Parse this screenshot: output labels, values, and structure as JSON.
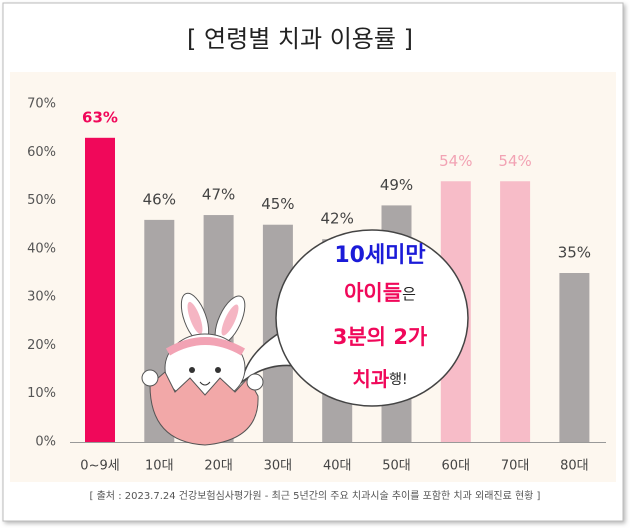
{
  "chart_data": {
    "type": "bar",
    "title": "[ 연령별 치과 이용률 ]",
    "categories": [
      "0~9세",
      "10대",
      "20대",
      "30대",
      "40대",
      "50대",
      "60대",
      "70대",
      "80대"
    ],
    "values": [
      63,
      46,
      47,
      45,
      42,
      49,
      54,
      54,
      35
    ],
    "value_labels": [
      "63%",
      "46%",
      "47%",
      "45%",
      "42%",
      "49%",
      "54%",
      "54%",
      "35%"
    ],
    "colors": [
      "#f0085a",
      "#aaa6a6",
      "#aaa6a6",
      "#aaa6a6",
      "#aaa6a6",
      "#aaa6a6",
      "#f7bcc8",
      "#f7bcc8",
      "#aaa6a6"
    ],
    "value_label_colors": [
      "#f0085a",
      "#444444",
      "#444444",
      "#444444",
      "#444444",
      "#444444",
      "#f2a3b4",
      "#f2a3b4",
      "#444444"
    ],
    "ylim": [
      0,
      70
    ],
    "yticks": [
      {
        "value": 0,
        "label": "0%"
      },
      {
        "value": 10,
        "label": "10%"
      },
      {
        "value": 20,
        "label": "20%"
      },
      {
        "value": 30,
        "label": "30%"
      },
      {
        "value": 40,
        "label": "40%"
      },
      {
        "value": 50,
        "label": "50%"
      },
      {
        "value": 60,
        "label": "60%"
      },
      {
        "value": 70,
        "label": "70%"
      }
    ],
    "grid": false,
    "annotation": [
      [
        {
          "text": "10세미만",
          "color": "#1b1bd8"
        }
      ],
      [
        {
          "text": "아이들",
          "color": "#f0085a"
        },
        {
          "text": "은",
          "color": "#222222"
        }
      ],
      [
        {
          "text": "3분의 2가",
          "color": "#f0085a"
        }
      ],
      [
        {
          "text": "치과",
          "color": "#f0085a"
        },
        {
          "text": "행!",
          "color": "#222222"
        }
      ]
    ],
    "source": "[ 출처 : 2023.7.24 건강보험심사평가원 - 최근 5년간의 주요 치과시술 추이를 포함한 치과 외래진료 현황 ]"
  }
}
